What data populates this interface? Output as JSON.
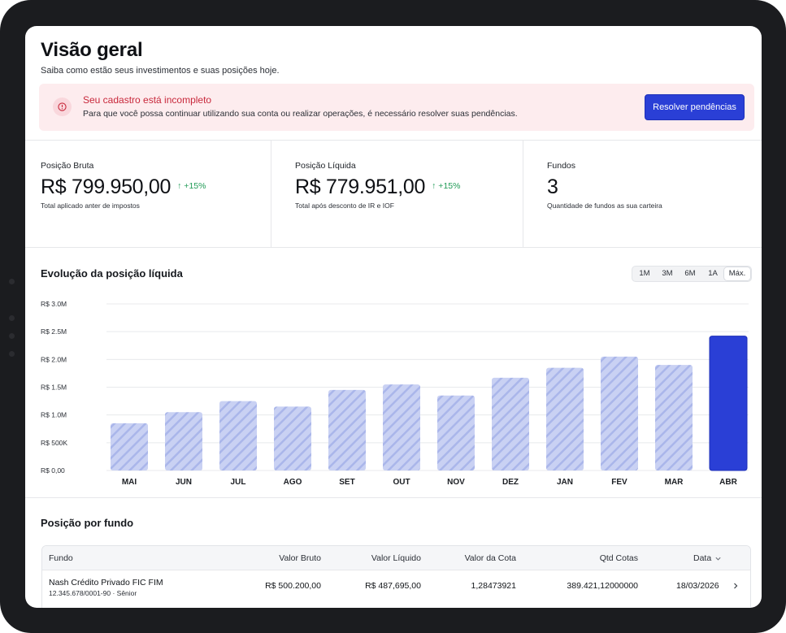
{
  "header": {
    "title": "Visão geral",
    "subtitle": "Saiba como estão seus investimentos e suas posições hoje."
  },
  "alert": {
    "icon": "alert-circle-icon",
    "title": "Seu cadastro está incompleto",
    "text": "Para que você possa continuar utilizando sua conta ou realizar operações, é necessário resolver suas pendências.",
    "button_label": "Resolver pendências"
  },
  "kpis": [
    {
      "label": "Posição Bruta",
      "value": "R$ 799.950,00",
      "delta": "↑ +15%",
      "note": "Total aplicado anter de impostos"
    },
    {
      "label": "Posição Líquida",
      "value": "R$ 779.951,00",
      "delta": "↑ +15%",
      "note": "Total após desconto de IR e IOF"
    },
    {
      "label": "Fundos",
      "value": "3",
      "delta": "",
      "note": "Quantidade de fundos as sua carteira"
    }
  ],
  "chart_section": {
    "title": "Evolução da posição líquida",
    "ranges": [
      "1M",
      "3M",
      "6M",
      "1A",
      "Máx."
    ],
    "active_range": "Máx."
  },
  "chart_data": {
    "type": "bar",
    "categories": [
      "MAI",
      "JUN",
      "JUL",
      "AGO",
      "SET",
      "OUT",
      "NOV",
      "DEZ",
      "JAN",
      "FEV",
      "MAR",
      "ABR"
    ],
    "values": [
      850000,
      1050000,
      1250000,
      1150000,
      1450000,
      1550000,
      1350000,
      1670000,
      1850000,
      2050000,
      1900000,
      2420000
    ],
    "highlight_index": 11,
    "ylim": [
      0,
      3000000
    ],
    "y_ticks": [
      {
        "value": 0,
        "label": "R$ 0,00"
      },
      {
        "value": 500000,
        "label": "R$ 500K"
      },
      {
        "value": 1000000,
        "label": "R$ 1.0M"
      },
      {
        "value": 1500000,
        "label": "R$ 1.5M"
      },
      {
        "value": 2000000,
        "label": "R$ 2.0M"
      },
      {
        "value": 2500000,
        "label": "R$ 2.5M"
      },
      {
        "value": 3000000,
        "label": "R$ 3.0M"
      }
    ],
    "grid": true,
    "colors": {
      "bar": "#c9d1f3",
      "stripe": "#aab6ea",
      "highlight": "#2a3fd6"
    }
  },
  "funds_section": {
    "title": "Posição por fundo",
    "columns": [
      "Fundo",
      "Valor Bruto",
      "Valor Líquido",
      "Valor da Cota",
      "Qtd Cotas",
      "Data"
    ],
    "rows": [
      {
        "name": "Nash Crédito Privado FIC FIM",
        "detail": "12.345.678/0001-90 · Sênior",
        "bruto": "R$ 500.200,00",
        "liquido": "R$ 487,695,00",
        "cota": "1,28473921",
        "qtd": "389.421,12000000",
        "data": "18/03/2026"
      }
    ]
  }
}
